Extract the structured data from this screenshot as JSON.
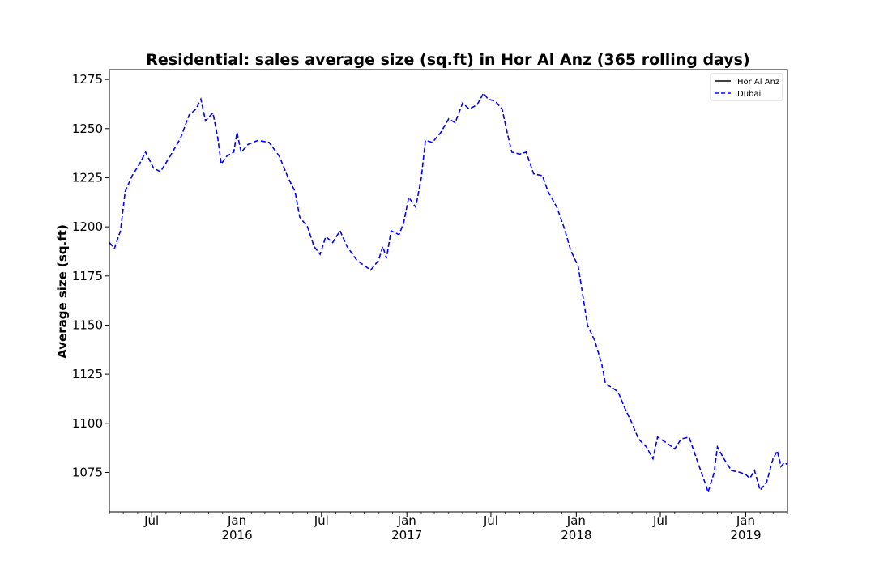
{
  "chart_data": {
    "type": "line",
    "title": "Residential: sales average size (sq.ft) in Hor Al Anz (365 rolling days)",
    "xlabel": "",
    "ylabel": "Average size (sq.ft)",
    "xlim": [
      "2015-04-01",
      "2019-04-01"
    ],
    "ylim": [
      1055,
      1280
    ],
    "yticks": [
      1075,
      1100,
      1125,
      1150,
      1175,
      1200,
      1225,
      1250,
      1275
    ],
    "xticks": [
      {
        "date": "2015-07-01",
        "label": "Jul",
        "sublabel": ""
      },
      {
        "date": "2016-01-01",
        "label": "Jan",
        "sublabel": "2016"
      },
      {
        "date": "2016-07-01",
        "label": "Jul",
        "sublabel": ""
      },
      {
        "date": "2017-01-01",
        "label": "Jan",
        "sublabel": "2017"
      },
      {
        "date": "2017-07-01",
        "label": "Jul",
        "sublabel": ""
      },
      {
        "date": "2018-01-01",
        "label": "Jan",
        "sublabel": "2018"
      },
      {
        "date": "2018-07-01",
        "label": "Jul",
        "sublabel": ""
      },
      {
        "date": "2019-01-01",
        "label": "Jan",
        "sublabel": "2019"
      }
    ],
    "legend": {
      "position": "top-right"
    },
    "series": [
      {
        "name": "Hor Al Anz",
        "color": "#000000",
        "style": "solid",
        "points": []
      },
      {
        "name": "Dubai",
        "color": "#0000ff",
        "style": "dashed",
        "points": [
          [
            "2015-04-01",
            1192
          ],
          [
            "2015-04-12",
            1189
          ],
          [
            "2015-04-25",
            1198
          ],
          [
            "2015-05-05",
            1218
          ],
          [
            "2015-05-20",
            1226
          ],
          [
            "2015-06-05",
            1232
          ],
          [
            "2015-06-18",
            1238
          ],
          [
            "2015-07-05",
            1230
          ],
          [
            "2015-07-20",
            1228
          ],
          [
            "2015-08-10",
            1236
          ],
          [
            "2015-09-01",
            1245
          ],
          [
            "2015-09-20",
            1257
          ],
          [
            "2015-10-05",
            1260
          ],
          [
            "2015-10-15",
            1265
          ],
          [
            "2015-10-25",
            1254
          ],
          [
            "2015-11-10",
            1258
          ],
          [
            "2015-11-20",
            1246
          ],
          [
            "2015-11-28",
            1232
          ],
          [
            "2015-12-10",
            1236
          ],
          [
            "2015-12-25",
            1238
          ],
          [
            "2016-01-01",
            1248
          ],
          [
            "2016-01-10",
            1238
          ],
          [
            "2016-01-25",
            1242
          ],
          [
            "2016-02-15",
            1244
          ],
          [
            "2016-03-10",
            1243
          ],
          [
            "2016-04-01",
            1236
          ],
          [
            "2016-04-20",
            1225
          ],
          [
            "2016-05-05",
            1218
          ],
          [
            "2016-05-15",
            1205
          ],
          [
            "2016-06-01",
            1200
          ],
          [
            "2016-06-15",
            1190
          ],
          [
            "2016-06-28",
            1186
          ],
          [
            "2016-07-10",
            1195
          ],
          [
            "2016-07-25",
            1192
          ],
          [
            "2016-08-10",
            1198
          ],
          [
            "2016-08-25",
            1190
          ],
          [
            "2016-09-15",
            1183
          ],
          [
            "2016-10-15",
            1178
          ],
          [
            "2016-11-01",
            1183
          ],
          [
            "2016-11-10",
            1190
          ],
          [
            "2016-11-18",
            1184
          ],
          [
            "2016-11-28",
            1198
          ],
          [
            "2016-12-15",
            1196
          ],
          [
            "2016-12-25",
            1202
          ],
          [
            "2017-01-05",
            1215
          ],
          [
            "2017-01-20",
            1210
          ],
          [
            "2017-02-01",
            1225
          ],
          [
            "2017-02-10",
            1244
          ],
          [
            "2017-02-25",
            1243
          ],
          [
            "2017-03-15",
            1248
          ],
          [
            "2017-04-01",
            1255
          ],
          [
            "2017-04-15",
            1253
          ],
          [
            "2017-05-01",
            1263
          ],
          [
            "2017-05-15",
            1260
          ],
          [
            "2017-06-01",
            1262
          ],
          [
            "2017-06-15",
            1268
          ],
          [
            "2017-06-25",
            1265
          ],
          [
            "2017-07-10",
            1264
          ],
          [
            "2017-07-25",
            1260
          ],
          [
            "2017-08-05",
            1248
          ],
          [
            "2017-08-15",
            1238
          ],
          [
            "2017-09-01",
            1237
          ],
          [
            "2017-09-15",
            1238
          ],
          [
            "2017-10-01",
            1227
          ],
          [
            "2017-10-20",
            1226
          ],
          [
            "2017-11-01",
            1218
          ],
          [
            "2017-11-20",
            1210
          ],
          [
            "2017-12-05",
            1200
          ],
          [
            "2017-12-20",
            1188
          ],
          [
            "2018-01-05",
            1180
          ],
          [
            "2018-01-15",
            1165
          ],
          [
            "2018-01-25",
            1150
          ],
          [
            "2018-02-10",
            1142
          ],
          [
            "2018-02-25",
            1130
          ],
          [
            "2018-03-05",
            1120
          ],
          [
            "2018-03-20",
            1118
          ],
          [
            "2018-04-01",
            1116
          ],
          [
            "2018-04-15",
            1108
          ],
          [
            "2018-05-01",
            1100
          ],
          [
            "2018-05-15",
            1092
          ],
          [
            "2018-06-01",
            1088
          ],
          [
            "2018-06-15",
            1082
          ],
          [
            "2018-06-25",
            1093
          ],
          [
            "2018-07-15",
            1090
          ],
          [
            "2018-08-01",
            1087
          ],
          [
            "2018-08-15",
            1092
          ],
          [
            "2018-09-01",
            1093
          ],
          [
            "2018-09-20",
            1080
          ],
          [
            "2018-10-05",
            1070
          ],
          [
            "2018-10-12",
            1065
          ],
          [
            "2018-10-25",
            1075
          ],
          [
            "2018-11-01",
            1088
          ],
          [
            "2018-11-15",
            1082
          ],
          [
            "2018-12-01",
            1076
          ],
          [
            "2018-12-20",
            1075
          ],
          [
            "2019-01-01",
            1074
          ],
          [
            "2019-01-10",
            1072
          ],
          [
            "2019-01-20",
            1076
          ],
          [
            "2019-02-01",
            1066
          ],
          [
            "2019-02-15",
            1070
          ],
          [
            "2019-03-01",
            1082
          ],
          [
            "2019-03-10",
            1086
          ],
          [
            "2019-03-18",
            1078
          ],
          [
            "2019-03-25",
            1080
          ],
          [
            "2019-04-01",
            1079
          ]
        ]
      }
    ]
  }
}
